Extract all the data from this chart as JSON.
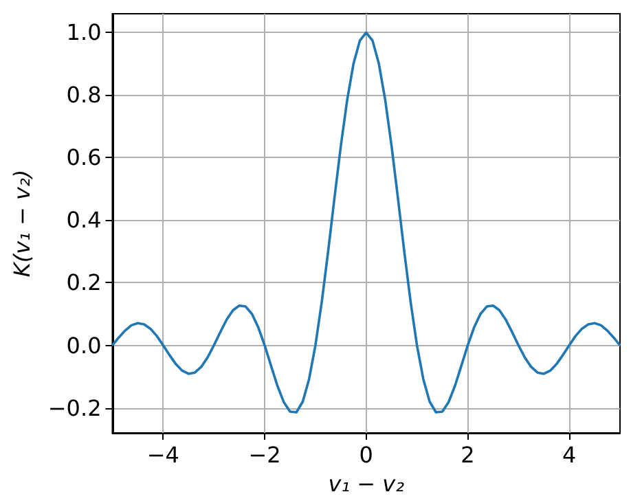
{
  "chart_data": {
    "type": "line",
    "xlabel": "v₁ − v₂",
    "ylabel": "K(v₁ − v₂)",
    "x": [
      -5,
      -4.875,
      -4.75,
      -4.625,
      -4.5,
      -4.375,
      -4.25,
      -4.125,
      -4,
      -3.875,
      -3.75,
      -3.625,
      -3.5,
      -3.375,
      -3.25,
      -3.125,
      -3,
      -2.875,
      -2.75,
      -2.625,
      -2.5,
      -2.375,
      -2.25,
      -2.125,
      -2,
      -1.875,
      -1.75,
      -1.625,
      -1.5,
      -1.375,
      -1.25,
      -1.125,
      -1,
      -0.875,
      -0.75,
      -0.625,
      -0.5,
      -0.375,
      -0.25,
      -0.125,
      0,
      0.125,
      0.25,
      0.375,
      0.5,
      0.625,
      0.75,
      0.875,
      1,
      1.125,
      1.25,
      1.375,
      1.5,
      1.625,
      1.75,
      1.875,
      2,
      2.125,
      2.25,
      2.375,
      2.5,
      2.625,
      2.75,
      2.875,
      3,
      3.125,
      3.25,
      3.375,
      3.5,
      3.625,
      3.75,
      3.875,
      4,
      4.125,
      4.25,
      4.375,
      4.5,
      4.625,
      4.75,
      4.875,
      5
    ],
    "series": [
      {
        "color": "#1f77b4",
        "values": [
          0,
          0.025,
          0.047,
          0.064,
          0.071,
          0.067,
          0.053,
          0.03,
          0,
          -0.031,
          -0.06,
          -0.081,
          -0.091,
          -0.087,
          -0.069,
          -0.039,
          0,
          0.042,
          0.082,
          0.112,
          0.127,
          0.124,
          0.1,
          0.057,
          0,
          -0.065,
          -0.129,
          -0.181,
          -0.212,
          -0.214,
          -0.18,
          -0.108,
          0,
          0.139,
          0.3,
          0.471,
          0.637,
          0.784,
          0.9,
          0.974,
          1,
          0.974,
          0.9,
          0.784,
          0.637,
          0.471,
          0.3,
          0.139,
          0,
          -0.108,
          -0.18,
          -0.214,
          -0.212,
          -0.181,
          -0.129,
          -0.065,
          0,
          0.057,
          0.1,
          0.124,
          0.127,
          0.112,
          0.082,
          0.042,
          0,
          -0.039,
          -0.069,
          -0.087,
          -0.091,
          -0.081,
          -0.06,
          -0.031,
          0,
          0.03,
          0.053,
          0.067,
          0.071,
          0.064,
          0.047,
          0.025,
          0
        ]
      }
    ],
    "xlim": [
      -5,
      5
    ],
    "xticks": [
      {
        "value": -4,
        "label": "−4"
      },
      {
        "value": -2,
        "label": "−2"
      },
      0,
      2,
      4
    ],
    "ylim": [
      -0.28,
      1.06
    ],
    "yticks": [
      {
        "value": -0.2,
        "label": "−0.2"
      },
      {
        "value": 0,
        "label": "0.0"
      },
      {
        "value": 0.2,
        "label": "0.2"
      },
      {
        "value": 0.4,
        "label": "0.4"
      },
      {
        "value": 0.6,
        "label": "0.6"
      },
      {
        "value": 0.8,
        "label": "0.8"
      },
      {
        "value": 1,
        "label": "1.0"
      }
    ],
    "grid": true,
    "marker": "none",
    "line_style": "solid"
  }
}
